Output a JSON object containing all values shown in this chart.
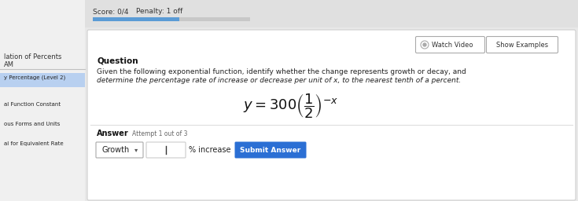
{
  "bg_color": "#e8e8e8",
  "main_panel_color": "#f5f5f5",
  "left_sidebar_color": "#f0f0f0",
  "top_bar_color": "#e0e0e0",
  "score_text": "Score: 0/4",
  "penalty_text": "Penalty: 1 off",
  "progress_bar_color": "#5b9bd5",
  "progress_bar_bg": "#c8c8c8",
  "watch_video_text": "Watch Video",
  "show_examples_text": "Show Examples",
  "question_label": "Question",
  "question_text_line1": "Given the following exponential function, identify whether the change represents growth or decay, and",
  "question_text_line2": "determine the percentage rate of increase or decrease per unit of x, to the nearest tenth of a percent.",
  "formula_text": "y = 300\\left(\\frac{1}{2}\\right)^{-x}",
  "answer_label": "Answer",
  "attempt_text": "Attempt 1 out of 3",
  "growth_label": "Growth",
  "percent_increase_label": "% increase",
  "submit_button_text": "Submit Answer",
  "submit_button_color": "#2b6fd4",
  "submit_button_text_color": "#ffffff",
  "left_menu_items": [
    "y Percentage (Level 2)",
    "al Function Constant",
    "ous Forms and Units",
    "al for Equivalent Rate"
  ],
  "left_menu_highlight_color": "#b8d0f0",
  "left_header_line1": "lation of Percents",
  "left_header_line2": "AM",
  "sidebar_divider_color": "#c0c0c0",
  "panel_border_color": "#d0d0d0",
  "watch_video_icon_color": "#555555",
  "input_box_color": "#ffffff",
  "input_box_border": "#cccccc",
  "dropdown_color": "#ffffff",
  "dropdown_border": "#aaaaaa"
}
